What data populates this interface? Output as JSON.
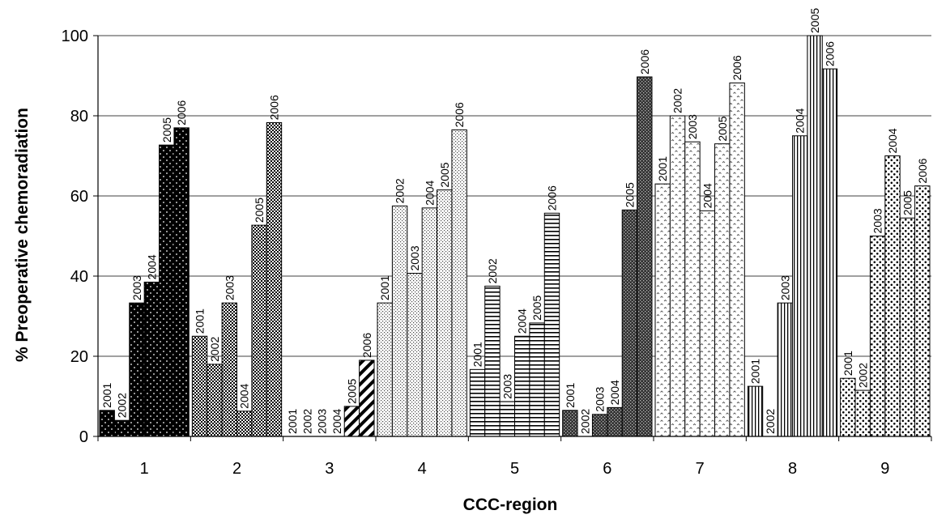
{
  "chart_data": {
    "type": "bar",
    "title": "",
    "xlabel": "CCC-region",
    "ylabel": "% Preoperative chemoradiation",
    "ylim": [
      0,
      100
    ],
    "yticks": [
      0,
      20,
      40,
      60,
      80,
      100
    ],
    "grid": true,
    "legend": "none",
    "categories": [
      "1",
      "2",
      "3",
      "4",
      "5",
      "6",
      "7",
      "8",
      "9"
    ],
    "series": [
      {
        "values": [
          6.5,
          25,
          0,
          33.3,
          16.7,
          6.5,
          63,
          12.5,
          14.5
        ]
      },
      {
        "values": [
          4,
          18,
          0,
          57.5,
          37.5,
          0,
          80,
          0,
          11.5
        ]
      },
      {
        "values": [
          33.3,
          33.3,
          0,
          40.7,
          8.7,
          5.5,
          73.5,
          33.3,
          50
        ]
      },
      {
        "values": [
          38.5,
          6.3,
          0,
          57,
          25,
          7.2,
          56.3,
          75,
          70
        ]
      },
      {
        "values": [
          72.7,
          52.7,
          7.5,
          61.5,
          28.3,
          56.5,
          73,
          100,
          54.5
        ]
      },
      {
        "values": [
          77,
          78.3,
          19,
          76.5,
          55.7,
          89.7,
          88.2,
          91.7,
          62.5
        ]
      }
    ],
    "bar_labels": [
      [
        "2001",
        "2002",
        "2003",
        "2004",
        "2005",
        "2006"
      ],
      [
        "2001",
        "2002",
        "2003",
        "2004",
        "2005",
        "2006"
      ],
      [
        "2001",
        "2002",
        "2003",
        "2004",
        "2005",
        "2006"
      ],
      [
        "2001",
        "2002",
        "2003",
        "2004",
        "2005",
        "2006"
      ],
      [
        "2001",
        "2002",
        "2003",
        "2004",
        "2005",
        "2006"
      ],
      [
        "2001",
        "2002",
        "2003",
        "2004",
        "2005",
        "2006"
      ],
      [
        "2001",
        "2002",
        "2003",
        "2004",
        "2005",
        "2006"
      ],
      [
        "2001",
        "2002",
        "2003",
        "2004",
        "2005",
        "2006"
      ],
      [
        "2001",
        "2002",
        "2003",
        "2004",
        "2005",
        "2006"
      ]
    ],
    "region_fill_patterns": [
      "dense-dots-black",
      "checker",
      "diagonal-hatch",
      "fine-dots",
      "horizontal-lines",
      "dark-checker",
      "chevron-light",
      "vertical-lines",
      "large-dots"
    ]
  }
}
